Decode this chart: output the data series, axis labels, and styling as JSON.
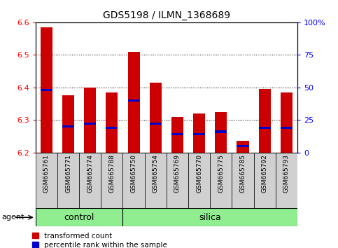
{
  "title": "GDS5198 / ILMN_1368689",
  "samples": [
    "GSM665761",
    "GSM665771",
    "GSM665774",
    "GSM665788",
    "GSM665750",
    "GSM665754",
    "GSM665769",
    "GSM665770",
    "GSM665775",
    "GSM665785",
    "GSM665792",
    "GSM665793"
  ],
  "groups": [
    "control",
    "control",
    "control",
    "control",
    "silica",
    "silica",
    "silica",
    "silica",
    "silica",
    "silica",
    "silica",
    "silica"
  ],
  "transformed_count": [
    6.585,
    6.375,
    6.4,
    6.385,
    6.51,
    6.415,
    6.31,
    6.32,
    6.325,
    6.235,
    6.395,
    6.385
  ],
  "percentile_rank": [
    48,
    20,
    22,
    19,
    40,
    22,
    14,
    14,
    16,
    5,
    19,
    19
  ],
  "ymin": 6.2,
  "ymax": 6.6,
  "left_yticks": [
    6.2,
    6.3,
    6.4,
    6.5,
    6.6
  ],
  "right_yticks_vals": [
    0,
    25,
    50,
    75,
    100
  ],
  "right_ytick_labels": [
    "0",
    "25",
    "50",
    "75",
    "100%"
  ],
  "bar_color": "#cc0000",
  "percentile_color": "#0000cc",
  "bar_width": 0.55,
  "blue_bar_height": 0.007,
  "background_color": "#ffffff",
  "tick_area_color": "#d0d0d0",
  "group_color": "#90ee90",
  "legend_red_label": "transformed count",
  "legend_blue_label": "percentile rank within the sample",
  "agent_label": "agent",
  "control_label": "control",
  "silica_label": "silica",
  "title_fontsize": 10,
  "tick_fontsize": 8,
  "sample_fontsize": 6.5,
  "group_fontsize": 9,
  "legend_fontsize": 7.5,
  "agent_fontsize": 8
}
